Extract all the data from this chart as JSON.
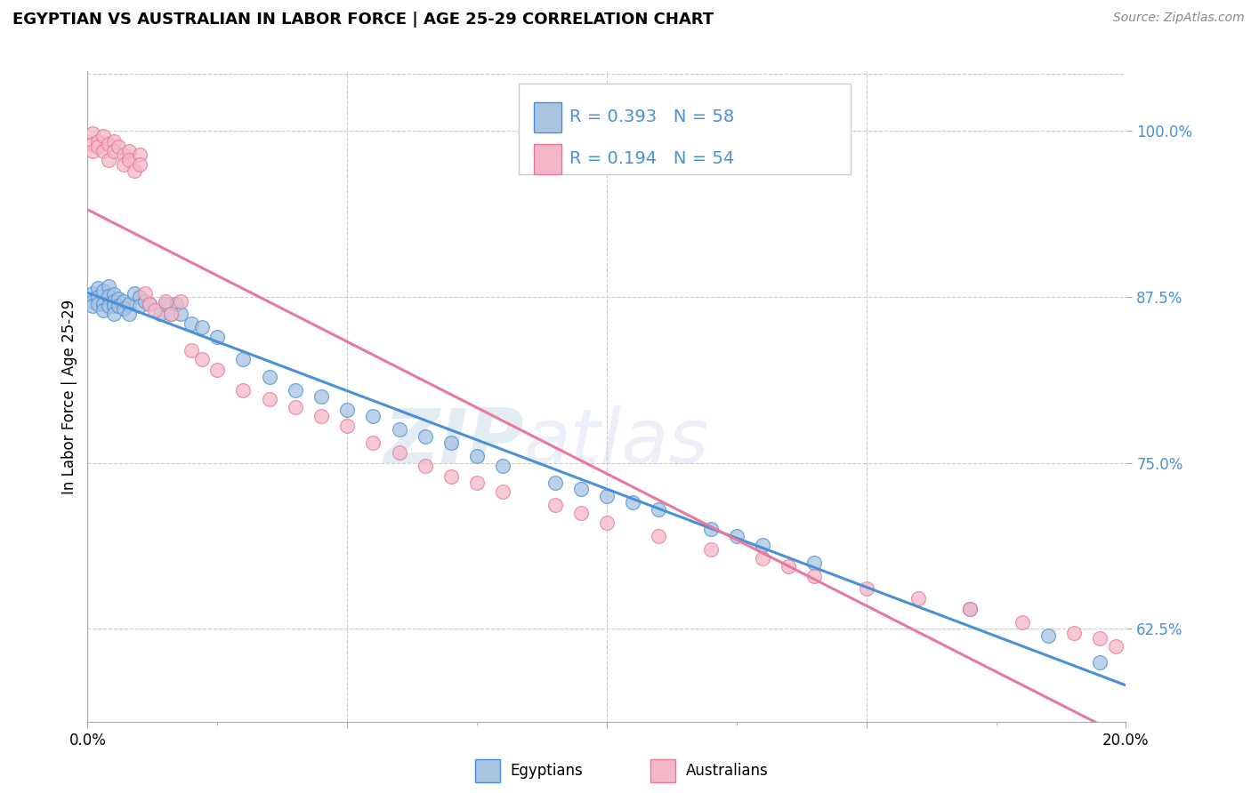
{
  "title": "EGYPTIAN VS AUSTRALIAN IN LABOR FORCE | AGE 25-29 CORRELATION CHART",
  "source": "Source: ZipAtlas.com",
  "ylabel": "In Labor Force | Age 25-29",
  "ytick_labels": [
    "62.5%",
    "75.0%",
    "87.5%",
    "100.0%"
  ],
  "ytick_values": [
    0.625,
    0.75,
    0.875,
    1.0
  ],
  "xlim": [
    0.0,
    0.2
  ],
  "ylim": [
    0.555,
    1.045
  ],
  "R_blue": 0.393,
  "N_blue": 58,
  "R_pink": 0.194,
  "N_pink": 54,
  "blue_fill": "#a8c4e0",
  "pink_fill": "#f4b8c8",
  "line_blue": "#4a90d9",
  "line_pink": "#e8799a",
  "watermark_zip": "ZIP",
  "watermark_atlas": "atlas",
  "egyptians_x": [
    0.001,
    0.001,
    0.001,
    0.002,
    0.002,
    0.002,
    0.003,
    0.003,
    0.003,
    0.004,
    0.004,
    0.004,
    0.005,
    0.005,
    0.005,
    0.005,
    0.006,
    0.006,
    0.007,
    0.007,
    0.008,
    0.008,
    0.009,
    0.01,
    0.01,
    0.011,
    0.012,
    0.014,
    0.015,
    0.016,
    0.017,
    0.018,
    0.02,
    0.022,
    0.025,
    0.03,
    0.035,
    0.04,
    0.045,
    0.05,
    0.055,
    0.06,
    0.065,
    0.07,
    0.075,
    0.08,
    0.09,
    0.095,
    0.1,
    0.105,
    0.11,
    0.12,
    0.125,
    0.13,
    0.14,
    0.17,
    0.185,
    0.195
  ],
  "egyptians_y": [
    0.878,
    0.872,
    0.868,
    0.882,
    0.875,
    0.87,
    0.88,
    0.87,
    0.865,
    0.883,
    0.876,
    0.868,
    0.877,
    0.872,
    0.868,
    0.862,
    0.874,
    0.868,
    0.872,
    0.866,
    0.87,
    0.862,
    0.878,
    0.875,
    0.868,
    0.872,
    0.87,
    0.862,
    0.87,
    0.862,
    0.87,
    0.862,
    0.855,
    0.852,
    0.845,
    0.828,
    0.815,
    0.805,
    0.8,
    0.79,
    0.785,
    0.775,
    0.77,
    0.765,
    0.755,
    0.748,
    0.735,
    0.73,
    0.725,
    0.72,
    0.715,
    0.7,
    0.695,
    0.688,
    0.675,
    0.64,
    0.62,
    0.6
  ],
  "australians_x": [
    0.001,
    0.001,
    0.001,
    0.002,
    0.002,
    0.003,
    0.003,
    0.004,
    0.004,
    0.005,
    0.005,
    0.006,
    0.007,
    0.007,
    0.008,
    0.008,
    0.009,
    0.01,
    0.01,
    0.011,
    0.012,
    0.013,
    0.015,
    0.016,
    0.018,
    0.02,
    0.022,
    0.025,
    0.03,
    0.035,
    0.04,
    0.045,
    0.05,
    0.055,
    0.06,
    0.065,
    0.07,
    0.075,
    0.08,
    0.09,
    0.095,
    0.1,
    0.11,
    0.12,
    0.13,
    0.135,
    0.14,
    0.15,
    0.16,
    0.17,
    0.18,
    0.19,
    0.195,
    0.198
  ],
  "australians_y": [
    0.998,
    0.99,
    0.985,
    0.992,
    0.988,
    0.996,
    0.985,
    0.99,
    0.978,
    0.992,
    0.985,
    0.988,
    0.982,
    0.975,
    0.985,
    0.978,
    0.97,
    0.982,
    0.975,
    0.878,
    0.87,
    0.865,
    0.872,
    0.862,
    0.872,
    0.835,
    0.828,
    0.82,
    0.805,
    0.798,
    0.792,
    0.785,
    0.778,
    0.765,
    0.758,
    0.748,
    0.74,
    0.735,
    0.728,
    0.718,
    0.712,
    0.705,
    0.695,
    0.685,
    0.678,
    0.672,
    0.665,
    0.655,
    0.648,
    0.64,
    0.63,
    0.622,
    0.618,
    0.612
  ]
}
